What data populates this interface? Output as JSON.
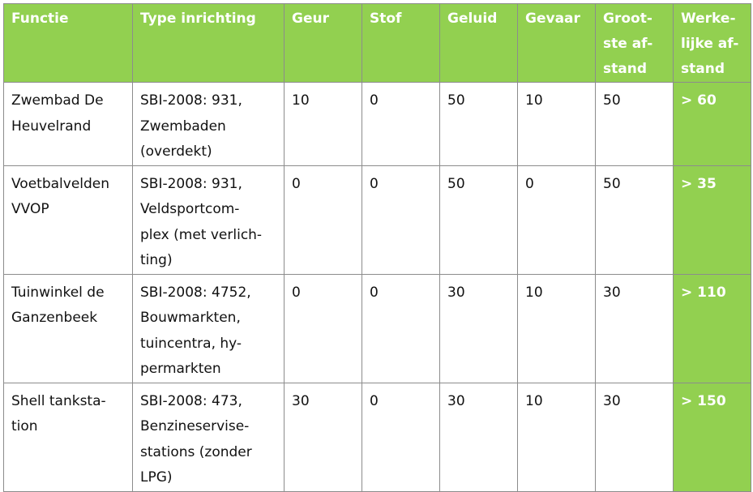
{
  "table": {
    "headers": [
      "Functie",
      "Type inrichting",
      "Geur",
      "Stof",
      "Geluid",
      "Gevaar",
      "Groot-\nste af-\nstand",
      "Werke-\nlijke af-\nstand"
    ],
    "rows": [
      {
        "functie": "Zwembad De\nHeuvelrand",
        "type": "SBI-2008: 931,\nZwembaden\n(overdekt)",
        "geur": "10",
        "stof": "0",
        "geluid": "50",
        "gevaar": "10",
        "grootste": "50",
        "werkelijke": "> 60"
      },
      {
        "functie": "Voetbalvelden\nVVOP",
        "type": "SBI-2008: 931,\nVeldsportcom-\nplex (met verlich-\nting)",
        "geur": "0",
        "stof": "0",
        "geluid": "50",
        "gevaar": "0",
        "grootste": "50",
        "werkelijke": "> 35"
      },
      {
        "functie": "Tuinwinkel de\nGanzenbeek",
        "type": "SBI-2008: 4752,\nBouwmarkten,\ntuincentra, hy-\npermarkten",
        "geur": "0",
        "stof": "0",
        "geluid": "30",
        "gevaar": "10",
        "grootste": "30",
        "werkelijke": "> 110"
      },
      {
        "functie": "Shell tanksta-\ntion",
        "type": "SBI-2008: 473,\nBenzineservise-\nstations (zonder\nLPG)",
        "geur": "30",
        "stof": "0",
        "geluid": "30",
        "gevaar": "10",
        "grootste": "30",
        "werkelijke": "> 150"
      }
    ]
  },
  "colors": {
    "header_bg": "#92d050",
    "header_text": "#ffffff",
    "border": "#8c8c8c"
  }
}
